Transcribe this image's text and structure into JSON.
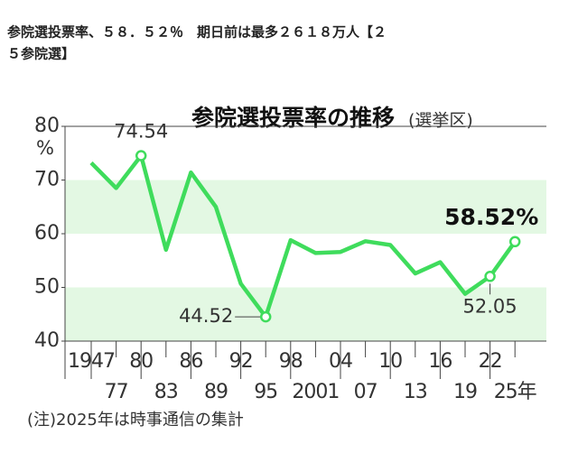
{
  "headline": "参院選投票率、５８．５２％　期日前は最多２６１８万人【２５参院選】",
  "chart_data": {
    "type": "line",
    "title": "参院選投票率の推移",
    "subtitle": "(選挙区)",
    "y_unit": "%",
    "note": "(注)2025年は時事通信の集計",
    "categories": [
      "1947",
      "77",
      "80",
      "83",
      "86",
      "89",
      "92",
      "95",
      "98",
      "2001",
      "04",
      "07",
      "10",
      "13",
      "16",
      "19",
      "22",
      "25年"
    ],
    "series": [
      {
        "name": "投票率",
        "color": "#3fdc5c",
        "values": [
          73.2,
          68.5,
          74.54,
          57.0,
          71.4,
          65.0,
          50.7,
          44.52,
          58.8,
          56.4,
          56.6,
          58.6,
          57.9,
          52.6,
          54.7,
          48.8,
          52.05,
          58.52
        ],
        "value_labels": [
          null,
          null,
          "74.54",
          null,
          null,
          null,
          null,
          "44.52",
          null,
          null,
          null,
          null,
          null,
          null,
          null,
          null,
          "52.05",
          "58.52%"
        ]
      }
    ],
    "ylim": [
      40,
      80
    ],
    "yticks": [
      40,
      50,
      60,
      70,
      80
    ],
    "band_color": "#e3f8e3"
  }
}
